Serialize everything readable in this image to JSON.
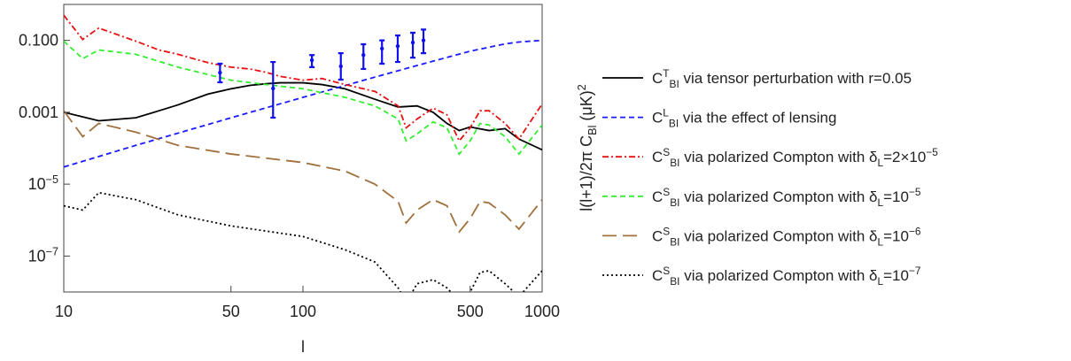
{
  "chart_data": {
    "type": "line",
    "xscale": "log",
    "yscale": "log",
    "xlim": [
      10,
      1000
    ],
    "ylim": [
      1e-08,
      1
    ],
    "xticks": [
      10,
      50,
      100,
      500,
      1000
    ],
    "yticks": [
      {
        "value": 0.1,
        "label": "0.100"
      },
      {
        "value": 0.001,
        "label": "0.001"
      },
      {
        "value": 1e-05,
        "label": "10^{−5}"
      },
      {
        "value": 1e-07,
        "label": "10^{−7}"
      }
    ],
    "xlabel": "l",
    "ylabel": "l(l+1)/2π C_{Bl} (μK)^{2}",
    "series": [
      {
        "name": "C^{T}_{BI} via tensor perturbation with r=0.05",
        "color": "#000000",
        "dash": "solid",
        "x": [
          10,
          14,
          20,
          25,
          30,
          40,
          50,
          60,
          70,
          80,
          100,
          120,
          150,
          200,
          250,
          300,
          350,
          400,
          450,
          500,
          600,
          700,
          800,
          1000
        ],
        "values": [
          0.001,
          0.00058,
          0.0007,
          0.0011,
          0.0016,
          0.0032,
          0.0045,
          0.0056,
          0.0062,
          0.0066,
          0.0066,
          0.0059,
          0.0045,
          0.0023,
          0.0014,
          0.0015,
          0.001,
          0.00049,
          0.00031,
          0.00039,
          0.00031,
          0.00035,
          0.00018,
          9e-05
        ]
      },
      {
        "name": "C^{L}_{BI} via the effect of lensing",
        "color": "#1a1aff",
        "dash": "dashed",
        "x": [
          10,
          20,
          50,
          100,
          200,
          300,
          500,
          700,
          800,
          1000
        ],
        "values": [
          3e-05,
          0.00012,
          0.0007,
          0.0026,
          0.0095,
          0.02,
          0.05,
          0.08,
          0.09,
          0.1
        ]
      },
      {
        "name": "C^{S}_{BI} via polarized Compton with δ_{L}=2×10^{−5}",
        "color": "#e81010",
        "dash": "dashdot",
        "x": [
          10,
          12,
          14,
          20,
          25,
          30,
          40,
          50,
          60,
          70,
          80,
          100,
          120,
          150,
          200,
          250,
          270,
          300,
          350,
          400,
          450,
          500,
          550,
          600,
          700,
          800,
          1000
        ],
        "values": [
          0.5,
          0.106,
          0.22,
          0.095,
          0.054,
          0.041,
          0.024,
          0.018,
          0.016,
          0.013,
          0.01,
          0.0078,
          0.0087,
          0.0059,
          0.0038,
          0.0015,
          0.00037,
          0.00065,
          0.0013,
          0.00085,
          0.00016,
          0.00037,
          0.0011,
          0.0011,
          0.00049,
          0.00018,
          0.0017
        ]
      },
      {
        "name": "C^{S}_{BI} via polarized Compton with δ_{L}=10^{−5}",
        "color": "#33ee33",
        "dash": "dashed",
        "x": [
          10,
          12,
          14,
          20,
          30,
          50,
          70,
          100,
          150,
          200,
          250,
          270,
          300,
          350,
          400,
          450,
          500,
          550,
          600,
          700,
          800,
          1000
        ],
        "values": [
          0.095,
          0.031,
          0.054,
          0.041,
          0.018,
          0.0078,
          0.0059,
          0.0045,
          0.0026,
          0.0015,
          0.00065,
          0.00016,
          0.00025,
          0.00054,
          0.00037,
          6.9e-05,
          0.00016,
          0.00049,
          0.00044,
          0.00021,
          6.9e-05,
          0.00044
        ]
      },
      {
        "name": "C^{S}_{BI} via polarized Compton with δ_{L}=10^{−6}",
        "color": "#a0703c",
        "dash": "longdash",
        "x": [
          10,
          12,
          14,
          20,
          30,
          50,
          100,
          150,
          200,
          250,
          270,
          300,
          350,
          400,
          450,
          500,
          550,
          600,
          700,
          800,
          1000
        ],
        "values": [
          0.0011,
          0.00021,
          0.00049,
          0.00028,
          0.00012,
          6.9e-05,
          4e-05,
          2.3e-05,
          1e-05,
          3.3e-06,
          8.3e-07,
          1.9e-06,
          3.7e-06,
          2.5e-06,
          4.7e-07,
          1.1e-06,
          3.3e-06,
          3e-06,
          1.4e-06,
          5.6e-07,
          3.7e-06
        ]
      },
      {
        "name": "C^{S}_{BI} via polarized Compton with δ_{L}=10^{−7}",
        "color": "#000000",
        "dash": "dotted",
        "x": [
          10,
          12,
          14,
          20,
          30,
          50,
          100,
          150,
          200,
          250,
          270,
          300,
          350,
          400,
          450,
          500,
          550,
          600,
          700,
          800,
          1000
        ],
        "values": [
          2.5e-06,
          1.9e-06,
          5.8e-06,
          3.7e-06,
          1.4e-06,
          6.9e-07,
          3.5e-07,
          1.5e-07,
          6.8e-08,
          1.3e-08,
          5e-09,
          1.7e-08,
          2.2e-08,
          1.3e-08,
          5.6e-09,
          9.8e-09,
          3.5e-08,
          3.9e-08,
          1.7e-08,
          7.4e-09,
          3.9e-08
        ]
      }
    ],
    "errorbars": {
      "color": "#1010ee",
      "x": [
        45,
        75,
        109,
        144,
        179,
        214,
        249,
        288,
        319
      ],
      "values": [
        0.0127,
        0.0046,
        0.028,
        0.019,
        0.039,
        0.059,
        0.069,
        0.087,
        0.1
      ],
      "low": [
        0.0068,
        0.00071,
        0.018,
        0.0081,
        0.016,
        0.0224,
        0.025,
        0.033,
        0.044
      ],
      "high": [
        0.0224,
        0.025,
        0.039,
        0.044,
        0.078,
        0.1,
        0.137,
        0.163,
        0.2
      ]
    }
  }
}
